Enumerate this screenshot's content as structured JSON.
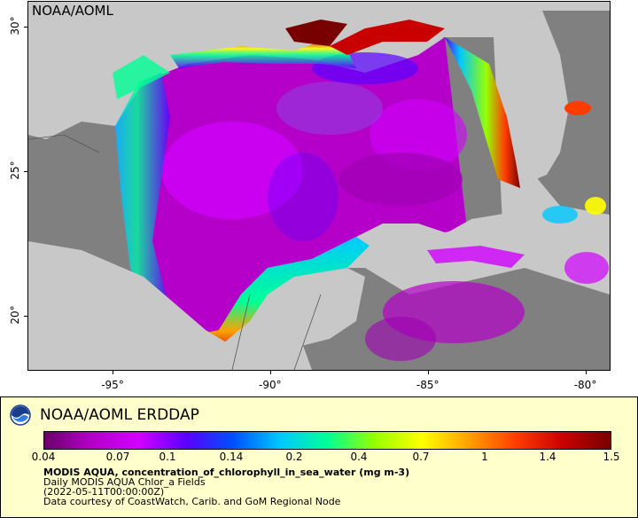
{
  "map": {
    "watermark": "NOAA/AOML",
    "lat_ticks": [
      {
        "label": "30°",
        "lat": 30
      },
      {
        "label": "25°",
        "lat": 25
      },
      {
        "label": "20°",
        "lat": 20
      }
    ],
    "lon_ticks": [
      {
        "label": "-95°",
        "lon": -95
      },
      {
        "label": "-90°",
        "lon": -90
      },
      {
        "label": "-85°",
        "lon": -85
      },
      {
        "label": "-80°",
        "lon": -80
      }
    ],
    "colors": {
      "land": "#c8c8c8",
      "nodata": "#808080",
      "border": "#000000"
    }
  },
  "legend": {
    "brand": "NOAA/AOML ERDDAP",
    "colorbar_ticks": [
      "0.04",
      "0.07",
      "0.1",
      "0.14",
      "0.2",
      "0.4",
      "0.7",
      "1",
      "1.4",
      "1.5"
    ],
    "colorbar_stops": [
      "#6a006a",
      "#b400c8",
      "#d200ff",
      "#5a00ff",
      "#0050ff",
      "#00c8ff",
      "#00ff96",
      "#96ff00",
      "#ffff00",
      "#ffa000",
      "#ff3c00",
      "#c80000",
      "#780000"
    ],
    "title": "MODIS AQUA, concentration_of_chlorophyll_in_sea_water (mg m-3)",
    "line2": "Daily MODIS AQUA Chlor_a Fields",
    "line3": "(2022-05-11T00:00:00Z)",
    "line4": "Data courtesy of CoastWatch, Carib. and GoM Regional Node"
  }
}
